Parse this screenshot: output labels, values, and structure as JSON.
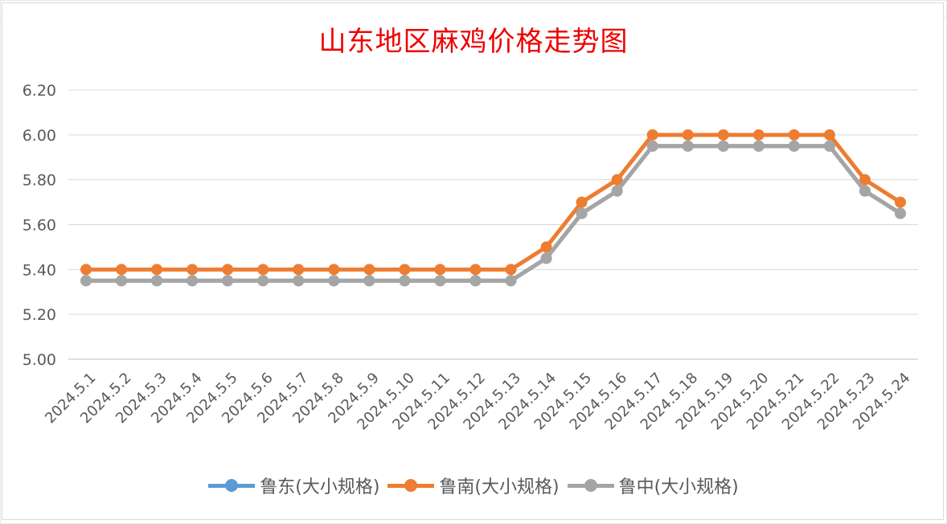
{
  "chart_data": {
    "type": "line",
    "title": "山东地区麻鸡价格走势图",
    "xlabel": "",
    "ylabel": "",
    "ylim": [
      5.0,
      6.2
    ],
    "yticks": [
      "5.00",
      "5.20",
      "5.40",
      "5.60",
      "5.80",
      "6.00",
      "6.20"
    ],
    "grid": true,
    "legend_position": "bottom",
    "categories": [
      "2024.5.1",
      "2024.5.2",
      "2024.5.3",
      "2024.5.4",
      "2024.5.5",
      "2024.5.6",
      "2024.5.7",
      "2024.5.8",
      "2024.5.9",
      "2024.5.10",
      "2024.5.11",
      "2024.5.12",
      "2024.5.13",
      "2024.5.14",
      "2024.5.15",
      "2024.5.16",
      "2024.5.17",
      "2024.5.18",
      "2024.5.19",
      "2024.5.20",
      "2024.5.21",
      "2024.5.22",
      "2024.5.23",
      "2024.5.24"
    ],
    "series": [
      {
        "name": "鲁东(大小规格)",
        "color": "#5b9bd5",
        "values": [
          5.35,
          5.35,
          5.35,
          5.35,
          5.35,
          5.35,
          5.35,
          5.35,
          5.35,
          5.35,
          5.35,
          5.35,
          5.35,
          5.45,
          5.65,
          5.75,
          5.95,
          5.95,
          5.95,
          5.95,
          5.95,
          5.95,
          5.75,
          5.65
        ]
      },
      {
        "name": "鲁南(大小规格)",
        "color": "#ed7d31",
        "values": [
          5.4,
          5.4,
          5.4,
          5.4,
          5.4,
          5.4,
          5.4,
          5.4,
          5.4,
          5.4,
          5.4,
          5.4,
          5.4,
          5.5,
          5.7,
          5.8,
          6.0,
          6.0,
          6.0,
          6.0,
          6.0,
          6.0,
          5.8,
          5.7
        ]
      },
      {
        "name": "鲁中(大小规格)",
        "color": "#a5a5a5",
        "values": [
          5.35,
          5.35,
          5.35,
          5.35,
          5.35,
          5.35,
          5.35,
          5.35,
          5.35,
          5.35,
          5.35,
          5.35,
          5.35,
          5.45,
          5.65,
          5.75,
          5.95,
          5.95,
          5.95,
          5.95,
          5.95,
          5.95,
          5.75,
          5.65
        ]
      }
    ]
  }
}
